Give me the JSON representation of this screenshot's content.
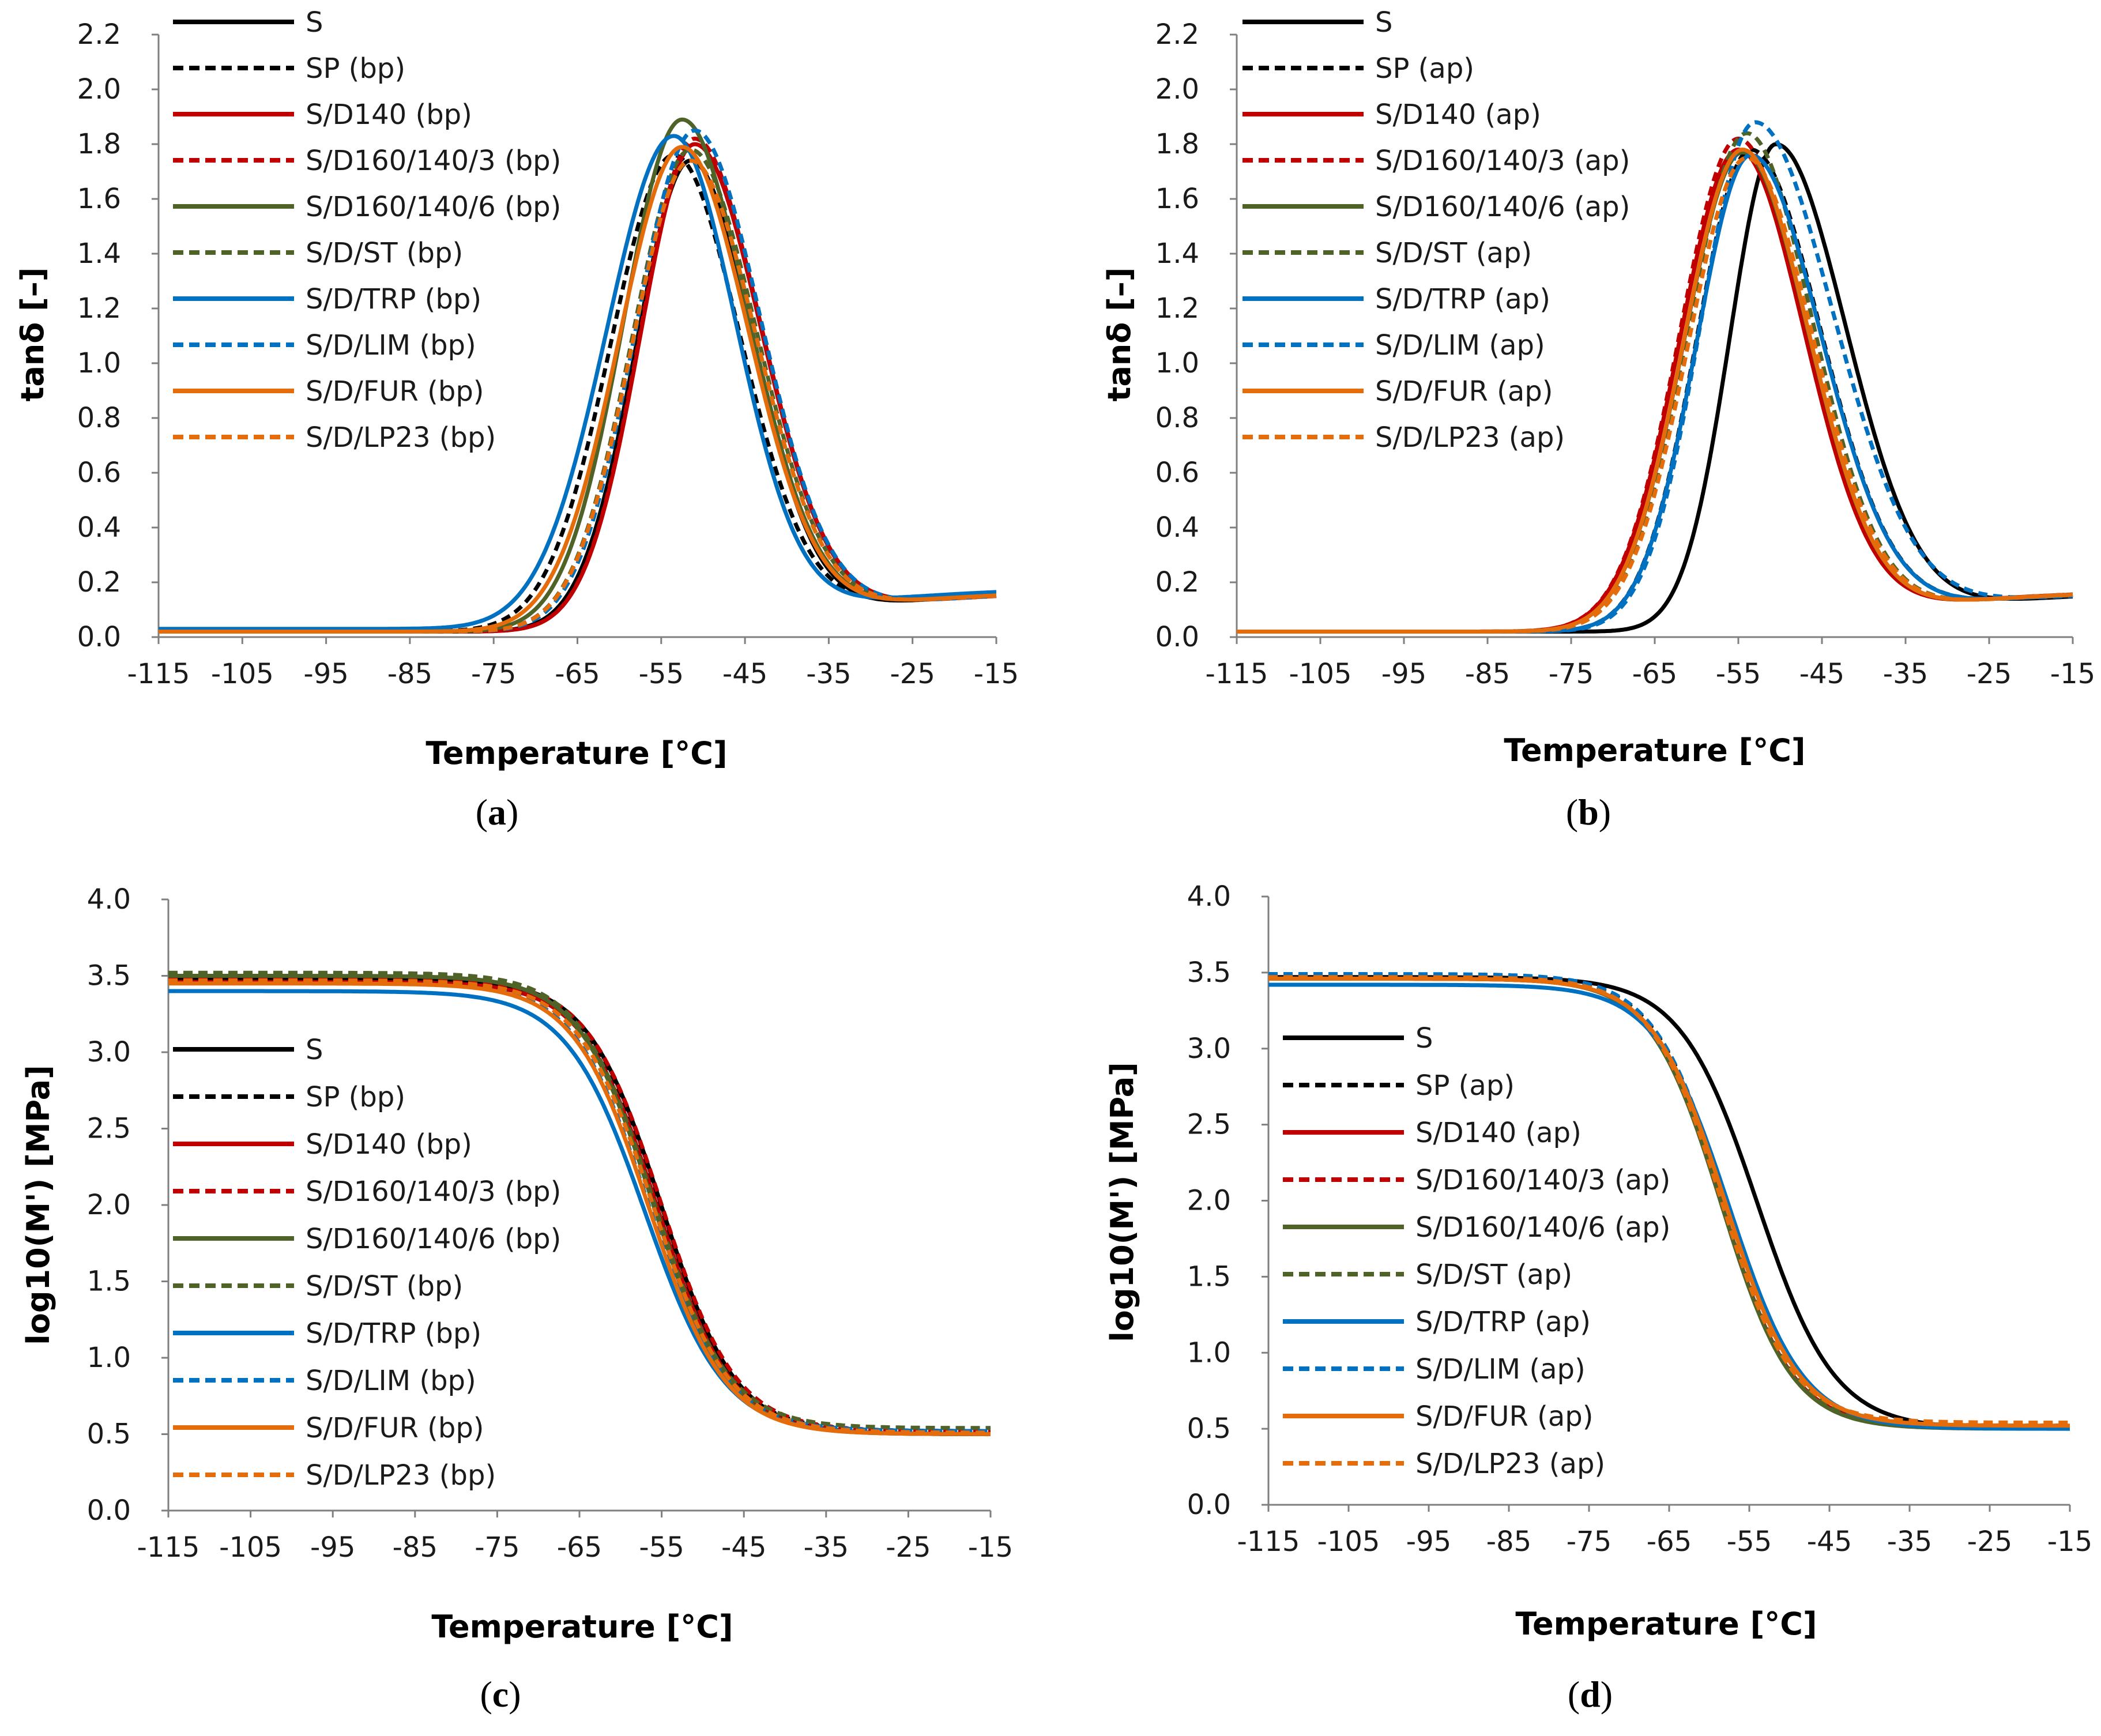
{
  "colors": {
    "black": "#000000",
    "red": "#c00000",
    "green": "#4f6228",
    "blue": "#0070c0",
    "orange": "#e46c0a"
  },
  "chart_data": [
    {
      "panel": "a",
      "type": "line",
      "caption_letter": "a",
      "xlabel": "Temperature [°C]",
      "ylabel": "tanδ [–]",
      "xlim": [
        -115,
        -15
      ],
      "ylim": [
        0.0,
        2.2
      ],
      "xticks": [
        "-115",
        "-105",
        "-95",
        "-85",
        "-75",
        "-65",
        "-55",
        "-45",
        "-35",
        "-25",
        "-15"
      ],
      "yticks": [
        "0.0",
        "0.2",
        "0.4",
        "0.6",
        "0.8",
        "1.0",
        "1.2",
        "1.4",
        "1.6",
        "1.8",
        "2.0",
        "2.2"
      ],
      "legend_position": "top-left",
      "series": [
        {
          "name": "S",
          "color": "black",
          "dash": false,
          "peak_x": -51.5,
          "peak_y": 1.74,
          "sl": 6.5,
          "sr": 7.5,
          "base": 0.02
        },
        {
          "name": "SP (bp)",
          "color": "black",
          "dash": true,
          "peak_x": -53.5,
          "peak_y": 1.76,
          "sl": 7.5,
          "sr": 8.0,
          "base": 0.02
        },
        {
          "name": "S/D140 (bp)",
          "color": "red",
          "dash": false,
          "peak_x": -51.0,
          "peak_y": 1.8,
          "sl": 6.5,
          "sr": 8.0,
          "base": 0.02
        },
        {
          "name": "S/D160/140/3 (bp)",
          "color": "red",
          "dash": true,
          "peak_x": -51.0,
          "peak_y": 1.82,
          "sl": 6.5,
          "sr": 8.0,
          "base": 0.02
        },
        {
          "name": "S/D160/140/6 (bp)",
          "color": "green",
          "dash": false,
          "peak_x": -52.5,
          "peak_y": 1.89,
          "sl": 7.0,
          "sr": 8.0,
          "base": 0.02
        },
        {
          "name": "S/D/ST (bp)",
          "color": "green",
          "dash": true,
          "peak_x": -51.5,
          "peak_y": 1.78,
          "sl": 7.0,
          "sr": 8.0,
          "base": 0.02
        },
        {
          "name": "S/D/TRP (bp)",
          "color": "blue",
          "dash": false,
          "peak_x": -53.5,
          "peak_y": 1.83,
          "sl": 8.0,
          "sr": 7.5,
          "base": 0.03
        },
        {
          "name": "S/D/LIM (bp)",
          "color": "blue",
          "dash": true,
          "peak_x": -51.0,
          "peak_y": 1.85,
          "sl": 7.0,
          "sr": 8.0,
          "base": 0.02
        },
        {
          "name": "S/D/FUR (bp)",
          "color": "orange",
          "dash": false,
          "peak_x": -52.5,
          "peak_y": 1.79,
          "sl": 7.5,
          "sr": 8.0,
          "base": 0.02
        },
        {
          "name": "S/D/LP23 (bp)",
          "color": "orange",
          "dash": true,
          "peak_x": -51.5,
          "peak_y": 1.74,
          "sl": 7.0,
          "sr": 8.0,
          "base": 0.02
        }
      ]
    },
    {
      "panel": "b",
      "type": "line",
      "caption_letter": "b",
      "xlabel": "Temperature [°C]",
      "ylabel": "tanδ [–]",
      "xlim": [
        -115,
        -15
      ],
      "ylim": [
        0.0,
        2.2
      ],
      "xticks": [
        "-115",
        "-105",
        "-95",
        "-85",
        "-75",
        "-65",
        "-55",
        "-45",
        "-35",
        "-25",
        "-15"
      ],
      "yticks": [
        "0.0",
        "0.2",
        "0.4",
        "0.6",
        "0.8",
        "1.0",
        "1.2",
        "1.4",
        "1.6",
        "1.8",
        "2.0",
        "2.2"
      ],
      "legend_position": "top-left",
      "series": [
        {
          "name": "S",
          "color": "black",
          "dash": false,
          "peak_x": -50.5,
          "peak_y": 1.8,
          "sl": 5.5,
          "sr": 8.5,
          "base": 0.02
        },
        {
          "name": "SP (ap)",
          "color": "black",
          "dash": true,
          "peak_x": -53.5,
          "peak_y": 1.78,
          "sl": 6.5,
          "sr": 8.5,
          "base": 0.02
        },
        {
          "name": "S/D140 (ap)",
          "color": "red",
          "dash": false,
          "peak_x": -55.0,
          "peak_y": 1.78,
          "sl": 7.0,
          "sr": 8.0,
          "base": 0.02
        },
        {
          "name": "S/D160/140/3 (ap)",
          "color": "red",
          "dash": true,
          "peak_x": -55.0,
          "peak_y": 1.82,
          "sl": 7.0,
          "sr": 8.0,
          "base": 0.02
        },
        {
          "name": "S/D160/140/6 (ap)",
          "color": "green",
          "dash": false,
          "peak_x": -54.5,
          "peak_y": 1.77,
          "sl": 7.0,
          "sr": 8.0,
          "base": 0.02
        },
        {
          "name": "S/D/ST (ap)",
          "color": "green",
          "dash": true,
          "peak_x": -54.0,
          "peak_y": 1.84,
          "sl": 7.0,
          "sr": 8.0,
          "base": 0.02
        },
        {
          "name": "S/D/TRP (ap)",
          "color": "blue",
          "dash": false,
          "peak_x": -53.5,
          "peak_y": 1.76,
          "sl": 6.5,
          "sr": 8.5,
          "base": 0.02
        },
        {
          "name": "S/D/LIM (ap)",
          "color": "blue",
          "dash": true,
          "peak_x": -53.0,
          "peak_y": 1.88,
          "sl": 6.5,
          "sr": 9.5,
          "base": 0.02
        },
        {
          "name": "S/D/FUR (ap)",
          "color": "orange",
          "dash": false,
          "peak_x": -54.5,
          "peak_y": 1.78,
          "sl": 7.0,
          "sr": 8.0,
          "base": 0.02
        },
        {
          "name": "S/D/LP23 (ap)",
          "color": "orange",
          "dash": true,
          "peak_x": -54.0,
          "peak_y": 1.75,
          "sl": 7.0,
          "sr": 8.0,
          "base": 0.02
        }
      ]
    },
    {
      "panel": "c",
      "type": "line",
      "caption_letter": "c",
      "xlabel": "Temperature [°C]",
      "ylabel": "log10(M') [MPa]",
      "xlim": [
        -115,
        -15
      ],
      "ylim": [
        0.0,
        4.0
      ],
      "xticks": [
        "-115",
        "-105",
        "-95",
        "-85",
        "-75",
        "-65",
        "-55",
        "-45",
        "-35",
        "-25",
        "-15"
      ],
      "yticks": [
        "0.0",
        "0.5",
        "1.0",
        "1.5",
        "2.0",
        "2.5",
        "3.0",
        "3.5",
        "4.0"
      ],
      "legend_position": "middle-left",
      "series": [
        {
          "name": "S",
          "color": "black",
          "dash": false,
          "top": 3.48,
          "bottom": 0.5,
          "mid": -55.0,
          "w": 4.5
        },
        {
          "name": "SP (bp)",
          "color": "black",
          "dash": true,
          "top": 3.47,
          "bottom": 0.52,
          "mid": -55.5,
          "w": 4.5
        },
        {
          "name": "S/D140 (bp)",
          "color": "red",
          "dash": false,
          "top": 3.46,
          "bottom": 0.5,
          "mid": -55.5,
          "w": 4.5
        },
        {
          "name": "S/D160/140/3 (bp)",
          "color": "red",
          "dash": true,
          "top": 3.48,
          "bottom": 0.52,
          "mid": -55.0,
          "w": 4.5
        },
        {
          "name": "S/D160/140/6 (bp)",
          "color": "green",
          "dash": false,
          "top": 3.5,
          "bottom": 0.5,
          "mid": -56.0,
          "w": 4.5
        },
        {
          "name": "S/D/ST (bp)",
          "color": "green",
          "dash": true,
          "top": 3.52,
          "bottom": 0.54,
          "mid": -56.0,
          "w": 4.5
        },
        {
          "name": "S/D/TRP (bp)",
          "color": "blue",
          "dash": false,
          "top": 3.4,
          "bottom": 0.5,
          "mid": -57.0,
          "w": 4.8
        },
        {
          "name": "S/D/LIM (bp)",
          "color": "blue",
          "dash": true,
          "top": 3.46,
          "bottom": 0.52,
          "mid": -56.5,
          "w": 4.6
        },
        {
          "name": "S/D/FUR (bp)",
          "color": "orange",
          "dash": false,
          "top": 3.45,
          "bottom": 0.5,
          "mid": -56.5,
          "w": 4.6
        },
        {
          "name": "S/D/LP23 (bp)",
          "color": "orange",
          "dash": true,
          "top": 3.47,
          "bottom": 0.51,
          "mid": -56.0,
          "w": 4.6
        }
      ]
    },
    {
      "panel": "d",
      "type": "line",
      "caption_letter": "d",
      "xlabel": "Temperature [°C]",
      "ylabel": "log10(M') [MPa]",
      "xlim": [
        -115,
        -15
      ],
      "ylim": [
        0.0,
        4.0
      ],
      "xticks": [
        "-115",
        "-105",
        "-95",
        "-85",
        "-75",
        "-65",
        "-55",
        "-45",
        "-35",
        "-25",
        "-15"
      ],
      "yticks": [
        "0.0",
        "0.5",
        "1.0",
        "1.5",
        "2.0",
        "2.5",
        "3.0",
        "3.5",
        "4.0"
      ],
      "legend_position": "middle-left",
      "series": [
        {
          "name": "S",
          "color": "black",
          "dash": false,
          "top": 3.47,
          "bottom": 0.5,
          "mid": -54.0,
          "w": 4.8
        },
        {
          "name": "SP (ap)",
          "color": "black",
          "dash": true,
          "top": 3.48,
          "bottom": 0.52,
          "mid": -58.0,
          "w": 4.5
        },
        {
          "name": "S/D140 (ap)",
          "color": "red",
          "dash": false,
          "top": 3.46,
          "bottom": 0.51,
          "mid": -58.5,
          "w": 4.4
        },
        {
          "name": "S/D160/140/3 (ap)",
          "color": "red",
          "dash": true,
          "top": 3.47,
          "bottom": 0.52,
          "mid": -58.5,
          "w": 4.4
        },
        {
          "name": "S/D160/140/6 (ap)",
          "color": "green",
          "dash": false,
          "top": 3.46,
          "bottom": 0.5,
          "mid": -58.5,
          "w": 4.4
        },
        {
          "name": "S/D/ST (ap)",
          "color": "green",
          "dash": true,
          "top": 3.48,
          "bottom": 0.52,
          "mid": -58.5,
          "w": 4.4
        },
        {
          "name": "S/D/TRP (ap)",
          "color": "blue",
          "dash": false,
          "top": 3.42,
          "bottom": 0.5,
          "mid": -57.5,
          "w": 4.6
        },
        {
          "name": "S/D/LIM (ap)",
          "color": "blue",
          "dash": true,
          "top": 3.49,
          "bottom": 0.52,
          "mid": -58.0,
          "w": 4.5
        },
        {
          "name": "S/D/FUR (ap)",
          "color": "orange",
          "dash": false,
          "top": 3.46,
          "bottom": 0.52,
          "mid": -58.0,
          "w": 4.5
        },
        {
          "name": "S/D/LP23 (ap)",
          "color": "orange",
          "dash": true,
          "top": 3.47,
          "bottom": 0.54,
          "mid": -58.5,
          "w": 4.4
        }
      ]
    }
  ]
}
